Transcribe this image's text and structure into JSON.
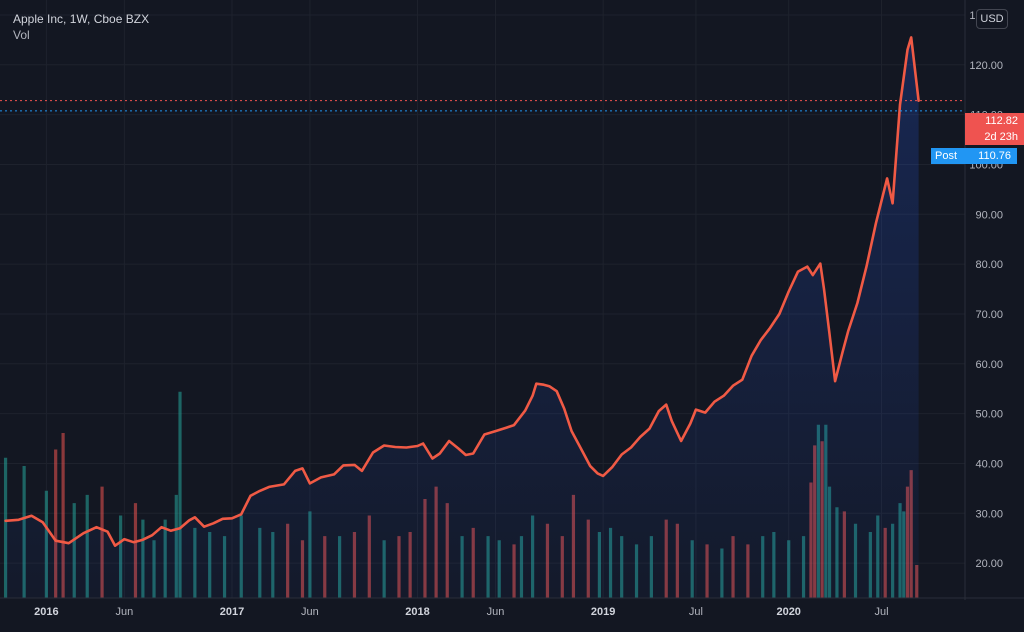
{
  "header": {
    "title": "Apple Inc, 1W, Cboe BZX",
    "volume_label": "Vol",
    "currency": "USD"
  },
  "price_tags": {
    "last": "112.82",
    "countdown": "2d 23h",
    "post_label": "Post",
    "post_value": "110.76"
  },
  "colors": {
    "background": "#131722",
    "line": "#f05a45",
    "volume_up": "#26a69a",
    "volume_down": "#ef5350",
    "post_tag": "#2196f3",
    "price_tag": "#ef5350"
  },
  "chart_data": {
    "type": "line",
    "title": "Apple Inc, 1W, Cboe BZX",
    "xlabel": "",
    "ylabel": "",
    "ylim": [
      13,
      133
    ],
    "xlim": [
      2015.75,
      2020.95
    ],
    "y_ticks": [
      "130.00",
      "120.00",
      "110.00",
      "100.00",
      "90.00",
      "80.00",
      "70.00",
      "60.00",
      "50.00",
      "40.00",
      "30.00",
      "20.00"
    ],
    "x_ticks": [
      {
        "label": "2016",
        "x": 2016.0
      },
      {
        "label": "Jun",
        "x": 2016.42
      },
      {
        "label": "2017",
        "x": 2017.0
      },
      {
        "label": "Jun",
        "x": 2017.42
      },
      {
        "label": "2018",
        "x": 2018.0
      },
      {
        "label": "Jun",
        "x": 2018.42
      },
      {
        "label": "2019",
        "x": 2019.0
      },
      {
        "label": "Jul",
        "x": 2019.5
      },
      {
        "label": "2020",
        "x": 2020.0
      },
      {
        "label": "Jul",
        "x": 2020.5
      }
    ],
    "grid": true,
    "series": [
      {
        "points": [
          [
            2015.78,
            28.5
          ],
          [
            2015.85,
            28.7
          ],
          [
            2015.92,
            29.5
          ],
          [
            2015.98,
            28.2
          ],
          [
            2016.05,
            24.5
          ],
          [
            2016.12,
            24.0
          ],
          [
            2016.2,
            26.0
          ],
          [
            2016.27,
            27.2
          ],
          [
            2016.33,
            26.3
          ],
          [
            2016.37,
            23.5
          ],
          [
            2016.42,
            24.8
          ],
          [
            2016.47,
            24.2
          ],
          [
            2016.52,
            24.7
          ],
          [
            2016.57,
            25.6
          ],
          [
            2016.62,
            27.2
          ],
          [
            2016.67,
            26.5
          ],
          [
            2016.72,
            27.0
          ],
          [
            2016.77,
            28.6
          ],
          [
            2016.8,
            29.2
          ],
          [
            2016.85,
            27.3
          ],
          [
            2016.9,
            28.0
          ],
          [
            2016.95,
            28.9
          ],
          [
            2017.0,
            29.0
          ],
          [
            2017.05,
            29.8
          ],
          [
            2017.1,
            33.5
          ],
          [
            2017.15,
            34.5
          ],
          [
            2017.2,
            35.3
          ],
          [
            2017.28,
            35.8
          ],
          [
            2017.34,
            38.5
          ],
          [
            2017.38,
            39.0
          ],
          [
            2017.42,
            36.0
          ],
          [
            2017.48,
            37.2
          ],
          [
            2017.55,
            37.8
          ],
          [
            2017.6,
            39.6
          ],
          [
            2017.66,
            39.7
          ],
          [
            2017.7,
            38.5
          ],
          [
            2017.76,
            42.2
          ],
          [
            2017.82,
            43.6
          ],
          [
            2017.88,
            43.3
          ],
          [
            2017.94,
            43.2
          ],
          [
            2018.0,
            43.5
          ],
          [
            2018.03,
            44.0
          ],
          [
            2018.08,
            41.0
          ],
          [
            2018.12,
            42.0
          ],
          [
            2018.17,
            44.5
          ],
          [
            2018.22,
            43.0
          ],
          [
            2018.26,
            41.7
          ],
          [
            2018.3,
            42.0
          ],
          [
            2018.36,
            45.8
          ],
          [
            2018.42,
            46.5
          ],
          [
            2018.48,
            47.2
          ],
          [
            2018.52,
            47.7
          ],
          [
            2018.58,
            50.6
          ],
          [
            2018.62,
            53.6
          ],
          [
            2018.64,
            56.0
          ],
          [
            2018.68,
            55.8
          ],
          [
            2018.71,
            55.5
          ],
          [
            2018.75,
            54.5
          ],
          [
            2018.79,
            51.0
          ],
          [
            2018.83,
            46.5
          ],
          [
            2018.88,
            43.0
          ],
          [
            2018.93,
            39.5
          ],
          [
            2018.97,
            38.0
          ],
          [
            2019.0,
            37.5
          ],
          [
            2019.05,
            39.3
          ],
          [
            2019.1,
            41.8
          ],
          [
            2019.15,
            43.2
          ],
          [
            2019.2,
            45.3
          ],
          [
            2019.25,
            47.0
          ],
          [
            2019.3,
            50.5
          ],
          [
            2019.34,
            51.8
          ],
          [
            2019.37,
            48.5
          ],
          [
            2019.42,
            44.5
          ],
          [
            2019.47,
            48.0
          ],
          [
            2019.5,
            50.8
          ],
          [
            2019.55,
            50.2
          ],
          [
            2019.6,
            52.4
          ],
          [
            2019.65,
            53.6
          ],
          [
            2019.7,
            55.6
          ],
          [
            2019.75,
            56.8
          ],
          [
            2019.8,
            61.6
          ],
          [
            2019.85,
            64.8
          ],
          [
            2019.9,
            67.2
          ],
          [
            2019.95,
            70.0
          ],
          [
            2020.0,
            74.5
          ],
          [
            2020.05,
            78.5
          ],
          [
            2020.1,
            79.5
          ],
          [
            2020.13,
            77.8
          ],
          [
            2020.17,
            80.1
          ],
          [
            2020.19,
            75.0
          ],
          [
            2020.22,
            66.0
          ],
          [
            2020.25,
            56.5
          ],
          [
            2020.29,
            62.3
          ],
          [
            2020.32,
            66.5
          ],
          [
            2020.37,
            72.2
          ],
          [
            2020.42,
            79.6
          ],
          [
            2020.47,
            88.2
          ],
          [
            2020.53,
            97.2
          ],
          [
            2020.56,
            92.2
          ],
          [
            2020.6,
            112.0
          ],
          [
            2020.64,
            123.0
          ],
          [
            2020.66,
            125.5
          ],
          [
            2020.7,
            112.8
          ]
        ]
      }
    ],
    "volume": {
      "axis_max": 160,
      "bars": [
        [
          2015.78,
          68,
          "up"
        ],
        [
          2015.88,
          64,
          "up"
        ],
        [
          2016.0,
          52,
          "up"
        ],
        [
          2016.05,
          72,
          "down"
        ],
        [
          2016.09,
          80,
          "down"
        ],
        [
          2016.15,
          46,
          "up"
        ],
        [
          2016.22,
          50,
          "up"
        ],
        [
          2016.3,
          54,
          "down"
        ],
        [
          2016.4,
          40,
          "up"
        ],
        [
          2016.48,
          46,
          "down"
        ],
        [
          2016.52,
          38,
          "up"
        ],
        [
          2016.58,
          28,
          "up"
        ],
        [
          2016.64,
          38,
          "up"
        ],
        [
          2016.7,
          50,
          "up"
        ],
        [
          2016.72,
          100,
          "up"
        ],
        [
          2016.8,
          34,
          "up"
        ],
        [
          2016.88,
          32,
          "up"
        ],
        [
          2016.96,
          30,
          "up"
        ],
        [
          2017.05,
          40,
          "up"
        ],
        [
          2017.15,
          34,
          "up"
        ],
        [
          2017.22,
          32,
          "up"
        ],
        [
          2017.3,
          36,
          "down"
        ],
        [
          2017.38,
          28,
          "down"
        ],
        [
          2017.42,
          42,
          "up"
        ],
        [
          2017.5,
          30,
          "down"
        ],
        [
          2017.58,
          30,
          "up"
        ],
        [
          2017.66,
          32,
          "down"
        ],
        [
          2017.74,
          40,
          "down"
        ],
        [
          2017.82,
          28,
          "up"
        ],
        [
          2017.9,
          30,
          "down"
        ],
        [
          2017.96,
          32,
          "down"
        ],
        [
          2018.04,
          48,
          "down"
        ],
        [
          2018.1,
          54,
          "down"
        ],
        [
          2018.16,
          46,
          "down"
        ],
        [
          2018.24,
          30,
          "up"
        ],
        [
          2018.3,
          34,
          "down"
        ],
        [
          2018.38,
          30,
          "up"
        ],
        [
          2018.44,
          28,
          "up"
        ],
        [
          2018.52,
          26,
          "down"
        ],
        [
          2018.56,
          30,
          "up"
        ],
        [
          2018.62,
          40,
          "up"
        ],
        [
          2018.7,
          36,
          "down"
        ],
        [
          2018.78,
          30,
          "down"
        ],
        [
          2018.84,
          50,
          "down"
        ],
        [
          2018.92,
          38,
          "down"
        ],
        [
          2018.98,
          32,
          "up"
        ],
        [
          2019.04,
          34,
          "up"
        ],
        [
          2019.1,
          30,
          "up"
        ],
        [
          2019.18,
          26,
          "up"
        ],
        [
          2019.26,
          30,
          "up"
        ],
        [
          2019.34,
          38,
          "down"
        ],
        [
          2019.4,
          36,
          "down"
        ],
        [
          2019.48,
          28,
          "up"
        ],
        [
          2019.56,
          26,
          "down"
        ],
        [
          2019.64,
          24,
          "up"
        ],
        [
          2019.7,
          30,
          "down"
        ],
        [
          2019.78,
          26,
          "down"
        ],
        [
          2019.86,
          30,
          "up"
        ],
        [
          2019.92,
          32,
          "up"
        ],
        [
          2020.0,
          28,
          "up"
        ],
        [
          2020.08,
          30,
          "up"
        ],
        [
          2020.12,
          56,
          "down"
        ],
        [
          2020.14,
          74,
          "down"
        ],
        [
          2020.16,
          84,
          "up"
        ],
        [
          2020.18,
          76,
          "down"
        ],
        [
          2020.2,
          84,
          "up"
        ],
        [
          2020.22,
          54,
          "up"
        ],
        [
          2020.26,
          44,
          "up"
        ],
        [
          2020.3,
          42,
          "down"
        ],
        [
          2020.36,
          36,
          "up"
        ],
        [
          2020.44,
          32,
          "up"
        ],
        [
          2020.48,
          40,
          "up"
        ],
        [
          2020.52,
          34,
          "down"
        ],
        [
          2020.56,
          36,
          "up"
        ],
        [
          2020.6,
          46,
          "up"
        ],
        [
          2020.62,
          42,
          "up"
        ],
        [
          2020.64,
          54,
          "down"
        ],
        [
          2020.66,
          62,
          "down"
        ],
        [
          2020.69,
          16,
          "down"
        ]
      ]
    }
  }
}
